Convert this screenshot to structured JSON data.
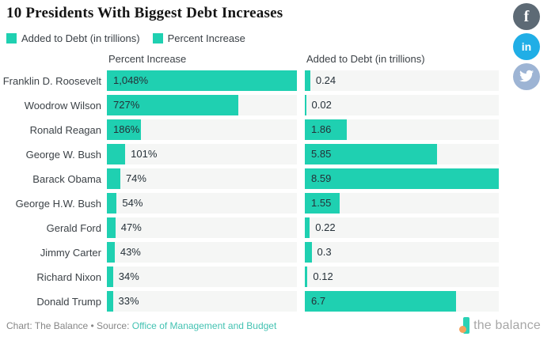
{
  "title": "10 Presidents With Biggest Debt Increases",
  "legend": [
    {
      "label": "Added to Debt (in trillions)"
    },
    {
      "label": "Percent Increase"
    }
  ],
  "columns": {
    "left_header": "Percent Increase",
    "right_header": "Added to Debt (in trillions)"
  },
  "chart_data": {
    "type": "bar",
    "orientation": "horizontal",
    "grid": false,
    "legend_position": "top",
    "categories": [
      "Franklin D. Roosevelt",
      "Woodrow Wilson",
      "Ronald Reagan",
      "George W. Bush",
      "Barack Obama",
      "George H.W. Bush",
      "Gerald Ford",
      "Jimmy Carter",
      "Richard Nixon",
      "Donald Trump"
    ],
    "series": [
      {
        "name": "Percent Increase",
        "values": [
          1048,
          727,
          186,
          101,
          74,
          54,
          47,
          43,
          34,
          33
        ],
        "labels": [
          "1,048%",
          "727%",
          "186%",
          "101%",
          "74%",
          "54%",
          "47%",
          "43%",
          "34%",
          "33%"
        ],
        "axis_max": 1048
      },
      {
        "name": "Added to Debt (in trillions)",
        "values": [
          0.24,
          0.02,
          1.86,
          5.85,
          8.59,
          1.55,
          0.22,
          0.3,
          0.12,
          6.7
        ],
        "labels": [
          "0.24",
          "0.02",
          "1.86",
          "5.85",
          "8.59",
          "1.55",
          "0.22",
          "0.3",
          "0.12",
          "6.7"
        ],
        "axis_max": 8.59
      }
    ]
  },
  "social": [
    {
      "name": "facebook",
      "glyph": "f"
    },
    {
      "name": "linkedin",
      "glyph": "in"
    },
    {
      "name": "twitter",
      "glyph": "twitter-bird"
    }
  ],
  "footer": {
    "credit": "Chart: The Balance • Source: ",
    "source_link": "Office of Management and Budget",
    "logo_text": "the balance"
  },
  "colors": {
    "bar": "#1fd0b1",
    "track": "#f5f6f5",
    "link": "#43c2b2",
    "facebook": "#5d6a75",
    "linkedin": "#20aee6",
    "twitter": "#9db4d4",
    "logo_teal": "#2ad2b5",
    "logo_orange": "#f5a25d"
  }
}
